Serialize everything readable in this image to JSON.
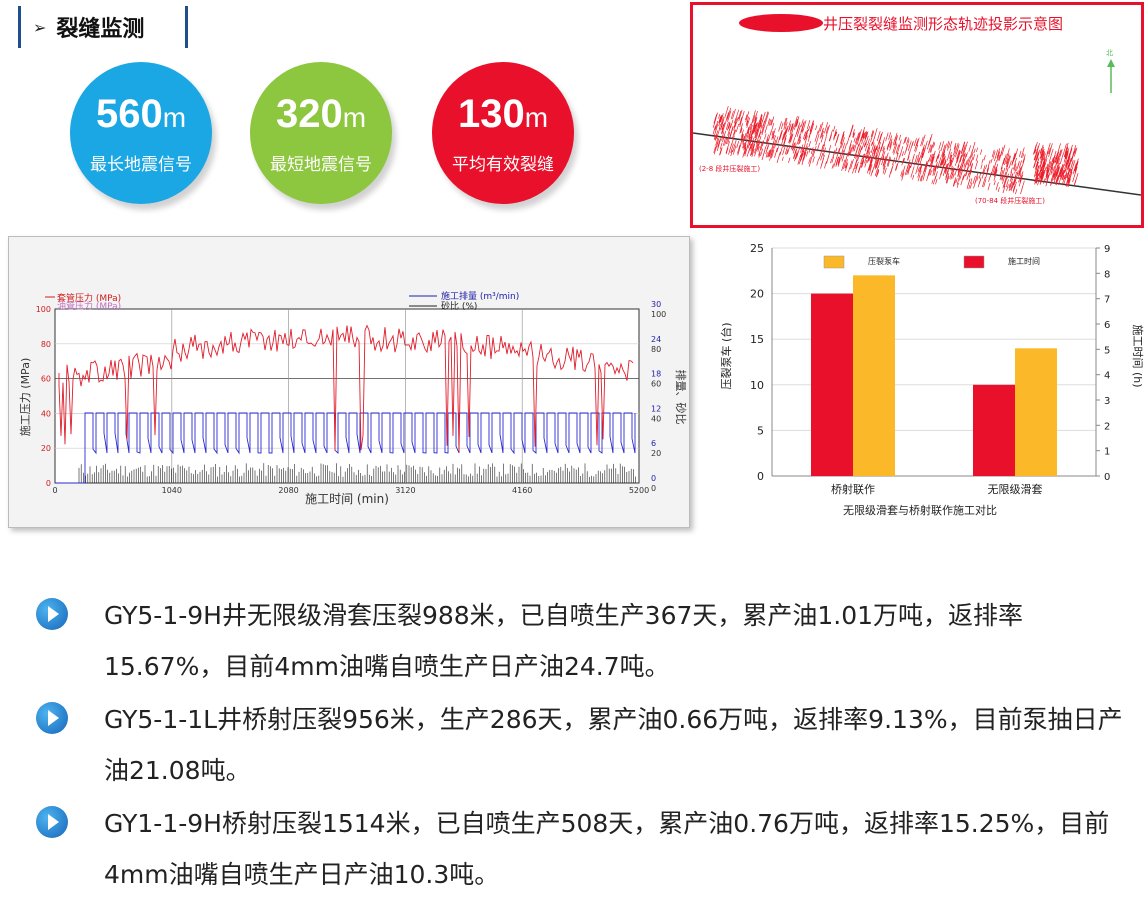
{
  "header": {
    "arrow": "➢",
    "title": "裂缝监测"
  },
  "stats": [
    {
      "value": "560",
      "unit": "m",
      "label": "最长地震信号",
      "color": "#1ba7e4"
    },
    {
      "value": "320",
      "unit": "m",
      "label": "最短地震信号",
      "color": "#8dc63f"
    },
    {
      "value": "130",
      "unit": "m",
      "label": "平均有效裂缝",
      "color": "#e8102a"
    }
  ],
  "crack_map": {
    "title": "井压裂裂缝监测形态轨迹投影示意图",
    "label_left": "(2-8 段井压裂施工)",
    "label_right": "(70-84 段井压裂施工)",
    "north": "北"
  },
  "pressure_chart": {
    "legend": [
      "套管压力 (MPa)",
      "油管压力 (MPa)",
      "施工排量 (m³/min)",
      "砂比 (%)"
    ],
    "ylabel_left": "施工压力 (MPa)",
    "ylabel_right": "排量、砂比",
    "xlabel": "施工时间  (min)",
    "x_ticks": [
      "0",
      "1040",
      "2080",
      "3120",
      "4160",
      "5200"
    ],
    "y_left_ticks": [
      "0",
      "20",
      "40",
      "60",
      "80",
      "100"
    ],
    "y_right_ticks": [
      "0",
      "6",
      "12",
      "18",
      "24",
      "30"
    ],
    "y_right_ticks2": [
      "0",
      "20",
      "40",
      "60",
      "80",
      "100"
    ]
  },
  "chart_data": {
    "type": "bar",
    "title": "无限级滑套与桥射联作施工对比",
    "categories": [
      "桥射联作",
      "无限级滑套"
    ],
    "series": [
      {
        "name": "压裂泵车",
        "axis": "left",
        "color": "#fbb829",
        "values": [
          22,
          14
        ]
      },
      {
        "name": "施工时间",
        "axis": "right",
        "color": "#e8102a",
        "values": [
          7.2,
          3.6
        ]
      }
    ],
    "ylabel_left": "压裂泵车 (台)",
    "ylabel_right": "施工时间 (h)",
    "ylim_left": [
      0,
      25
    ],
    "ylim_right": [
      0,
      9
    ],
    "yticks_left": [
      0,
      5,
      10,
      15,
      20,
      25
    ],
    "yticks_right": [
      0,
      1,
      2,
      3,
      4,
      5,
      6,
      7,
      8,
      9
    ],
    "legend_placement": "top"
  },
  "bullets": [
    "GY5-1-9H井无限级滑套压裂988米，已自喷生产367天，累产油1.01万吨，返排率15.67%，目前4mm油嘴自喷生产日产油24.7吨。",
    "GY5-1-1L井桥射压裂956米，生产286天，累产油0.66万吨，返排率9.13%，目前泵抽日产油21.08吨。",
    "GY1-1-9H桥射压裂1514米，已自喷生产508天，累产油0.76万吨，返排率15.25%，目前4mm油嘴自喷生产日产油10.3吨。"
  ]
}
